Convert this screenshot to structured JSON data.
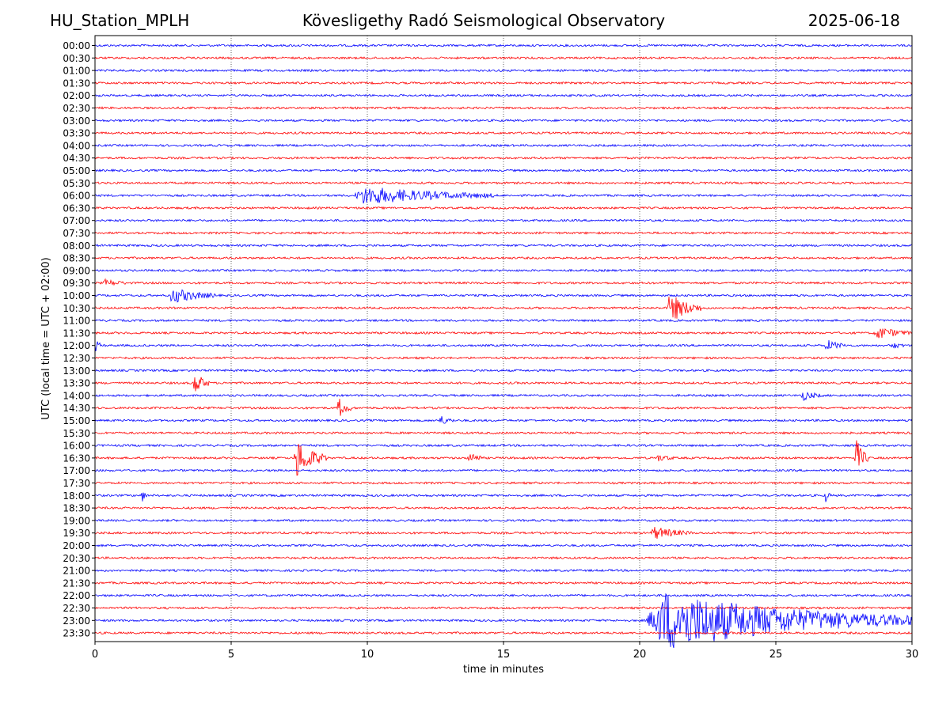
{
  "header": {
    "station": "HU_Station_MPLH",
    "observatory": "Kövesligethy Radó Seismological Observatory",
    "date": "2025-06-18"
  },
  "chart_data": {
    "type": "line",
    "title": "Kövesligethy Radó Seismological Observatory",
    "xlabel": "time in minutes",
    "ylabel": "UTC (local time = UTC + 02:00)",
    "xlim": [
      0,
      30
    ],
    "x_ticks": [
      0,
      5,
      10,
      15,
      20,
      25,
      30
    ],
    "grid": "vertical dotted lines at 5-minute ticks",
    "row_labels": [
      "00:00",
      "00:30",
      "01:00",
      "01:30",
      "02:00",
      "02:30",
      "03:00",
      "03:30",
      "04:00",
      "04:30",
      "05:00",
      "05:30",
      "06:00",
      "06:30",
      "07:00",
      "07:30",
      "08:00",
      "08:30",
      "09:00",
      "09:30",
      "10:00",
      "10:30",
      "11:00",
      "11:30",
      "12:00",
      "12:30",
      "13:00",
      "13:30",
      "14:00",
      "14:30",
      "15:00",
      "15:30",
      "16:00",
      "16:30",
      "17:00",
      "17:30",
      "18:00",
      "18:30",
      "19:00",
      "19:30",
      "20:00",
      "20:30",
      "21:00",
      "21:30",
      "22:00",
      "22:30",
      "23:00",
      "23:30"
    ],
    "trace_colors": [
      "#0000ff",
      "#ff0000"
    ],
    "events": [
      {
        "row": "06:00",
        "start_min": 9.5,
        "end_min": 14.7,
        "amplitude": 0.7
      },
      {
        "row": "09:30",
        "start_min": 0.3,
        "end_min": 1.2,
        "amplitude": 0.25
      },
      {
        "row": "10:00",
        "start_min": 2.7,
        "end_min": 4.5,
        "amplitude": 0.6
      },
      {
        "row": "10:30",
        "start_min": 21.0,
        "end_min": 22.3,
        "amplitude": 1.2
      },
      {
        "row": "11:30",
        "start_min": 28.6,
        "end_min": 30.0,
        "amplitude": 0.5
      },
      {
        "row": "12:00",
        "start_min": 0.0,
        "end_min": 0.3,
        "amplitude": 0.4
      },
      {
        "row": "12:00",
        "start_min": 26.8,
        "end_min": 27.6,
        "amplitude": 0.45
      },
      {
        "row": "12:00",
        "start_min": 29.2,
        "end_min": 29.7,
        "amplitude": 0.3
      },
      {
        "row": "13:30",
        "start_min": 3.6,
        "end_min": 4.2,
        "amplitude": 1.0
      },
      {
        "row": "14:00",
        "start_min": 25.9,
        "end_min": 26.7,
        "amplitude": 0.4
      },
      {
        "row": "14:30",
        "start_min": 8.9,
        "end_min": 9.4,
        "amplitude": 0.9
      },
      {
        "row": "15:00",
        "start_min": 12.6,
        "end_min": 13.2,
        "amplitude": 0.4
      },
      {
        "row": "16:30",
        "start_min": 7.3,
        "end_min": 8.5,
        "amplitude": 1.6
      },
      {
        "row": "16:30",
        "start_min": 13.7,
        "end_min": 14.2,
        "amplitude": 0.6
      },
      {
        "row": "16:30",
        "start_min": 20.6,
        "end_min": 21.3,
        "amplitude": 0.25
      },
      {
        "row": "16:30",
        "start_min": 27.9,
        "end_min": 28.4,
        "amplitude": 1.6
      },
      {
        "row": "18:00",
        "start_min": 1.7,
        "end_min": 1.9,
        "amplitude": 0.6
      },
      {
        "row": "18:00",
        "start_min": 26.8,
        "end_min": 27.0,
        "amplitude": 0.6
      },
      {
        "row": "19:30",
        "start_min": 20.4,
        "end_min": 21.9,
        "amplitude": 0.5
      },
      {
        "row": "23:00",
        "start_min": 20.2,
        "end_min": 30.0,
        "amplitude": 2.4
      }
    ]
  }
}
